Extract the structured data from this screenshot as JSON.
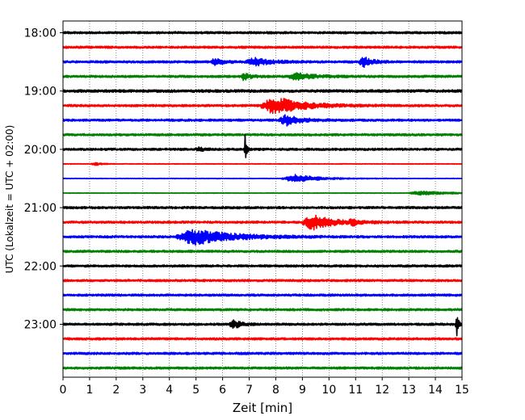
{
  "chart_data": {
    "type": "line",
    "title": "",
    "xlabel": "Zeit  [min]",
    "ylabel": "UTC (Lokalzeit = UTC + 02:00)",
    "xlim": [
      0,
      15
    ],
    "x_ticks": [
      0,
      1,
      2,
      3,
      4,
      5,
      6,
      7,
      8,
      9,
      10,
      11,
      12,
      13,
      14,
      15
    ],
    "y_tick_labels": [
      "18:00",
      "19:00",
      "20:00",
      "21:00",
      "22:00",
      "23:00"
    ],
    "grid": "vertical dotted",
    "trace_color_cycle": [
      "#000000",
      "#ff0000",
      "#0000ff",
      "#008000"
    ],
    "traces": [
      {
        "start": "18:00",
        "color": "#000000",
        "noise": 1.0,
        "events": []
      },
      {
        "start": "18:15",
        "color": "#ff0000",
        "noise": 1.0,
        "events": []
      },
      {
        "start": "18:30",
        "color": "#0000ff",
        "noise": 1.0,
        "events": [
          {
            "t": 5.7,
            "amp": 4,
            "dur": 0.5
          },
          {
            "t": 7.2,
            "amp": 5,
            "dur": 0.9
          },
          {
            "t": 11.3,
            "amp": 6,
            "dur": 0.5
          }
        ]
      },
      {
        "start": "18:45",
        "color": "#008000",
        "noise": 1.0,
        "events": [
          {
            "t": 6.8,
            "amp": 4,
            "dur": 0.4
          },
          {
            "t": 8.8,
            "amp": 4,
            "dur": 1.0
          }
        ]
      },
      {
        "start": "19:00",
        "color": "#000000",
        "noise": 1.2,
        "events": []
      },
      {
        "start": "19:15",
        "color": "#ff0000",
        "noise": 1.0,
        "events": [
          {
            "t": 8.0,
            "amp": 10,
            "dur": 1.6
          }
        ]
      },
      {
        "start": "19:30",
        "color": "#0000ff",
        "noise": 1.0,
        "events": [
          {
            "t": 8.4,
            "amp": 6,
            "dur": 0.8
          }
        ]
      },
      {
        "start": "19:45",
        "color": "#008000",
        "noise": 1.0,
        "events": []
      },
      {
        "start": "20:00",
        "color": "#000000",
        "noise": 1.0,
        "events": [
          {
            "t": 5.1,
            "amp": 2.5,
            "dur": 0.3
          },
          {
            "t": 6.85,
            "amp": 18,
            "dur": 0.08
          }
        ]
      },
      {
        "start": "20:15",
        "color": "#ff0000",
        "noise": 0.3,
        "events": [
          {
            "t": 1.2,
            "amp": 2,
            "dur": 0.4
          }
        ]
      },
      {
        "start": "20:30",
        "color": "#0000ff",
        "noise": 0.3,
        "events": [
          {
            "t": 8.7,
            "amp": 5,
            "dur": 1.4
          }
        ]
      },
      {
        "start": "20:45",
        "color": "#008000",
        "noise": 0.3,
        "events": [
          {
            "t": 13.5,
            "amp": 2.5,
            "dur": 1.5
          }
        ]
      },
      {
        "start": "21:00",
        "color": "#000000",
        "noise": 1.0,
        "events": []
      },
      {
        "start": "21:15",
        "color": "#ff0000",
        "noise": 1.0,
        "events": [
          {
            "t": 9.4,
            "amp": 9,
            "dur": 1.2
          },
          {
            "t": 10.9,
            "amp": 3,
            "dur": 0.4
          }
        ]
      },
      {
        "start": "21:30",
        "color": "#0000ff",
        "noise": 1.0,
        "events": [
          {
            "t": 5.0,
            "amp": 9,
            "dur": 2.2
          }
        ]
      },
      {
        "start": "21:45",
        "color": "#008000",
        "noise": 1.0,
        "events": []
      },
      {
        "start": "22:00",
        "color": "#000000",
        "noise": 1.0,
        "events": []
      },
      {
        "start": "22:15",
        "color": "#ff0000",
        "noise": 1.0,
        "events": []
      },
      {
        "start": "22:30",
        "color": "#0000ff",
        "noise": 1.0,
        "events": []
      },
      {
        "start": "22:45",
        "color": "#008000",
        "noise": 1.0,
        "events": []
      },
      {
        "start": "23:00",
        "color": "#000000",
        "noise": 1.0,
        "events": [
          {
            "t": 6.4,
            "amp": 6,
            "dur": 0.4
          },
          {
            "t": 14.8,
            "amp": 16,
            "dur": 0.12
          }
        ]
      },
      {
        "start": "23:15",
        "color": "#ff0000",
        "noise": 1.0,
        "events": []
      },
      {
        "start": "23:30",
        "color": "#0000ff",
        "noise": 1.0,
        "events": []
      },
      {
        "start": "23:45",
        "color": "#008000",
        "noise": 1.0,
        "events": []
      }
    ]
  }
}
